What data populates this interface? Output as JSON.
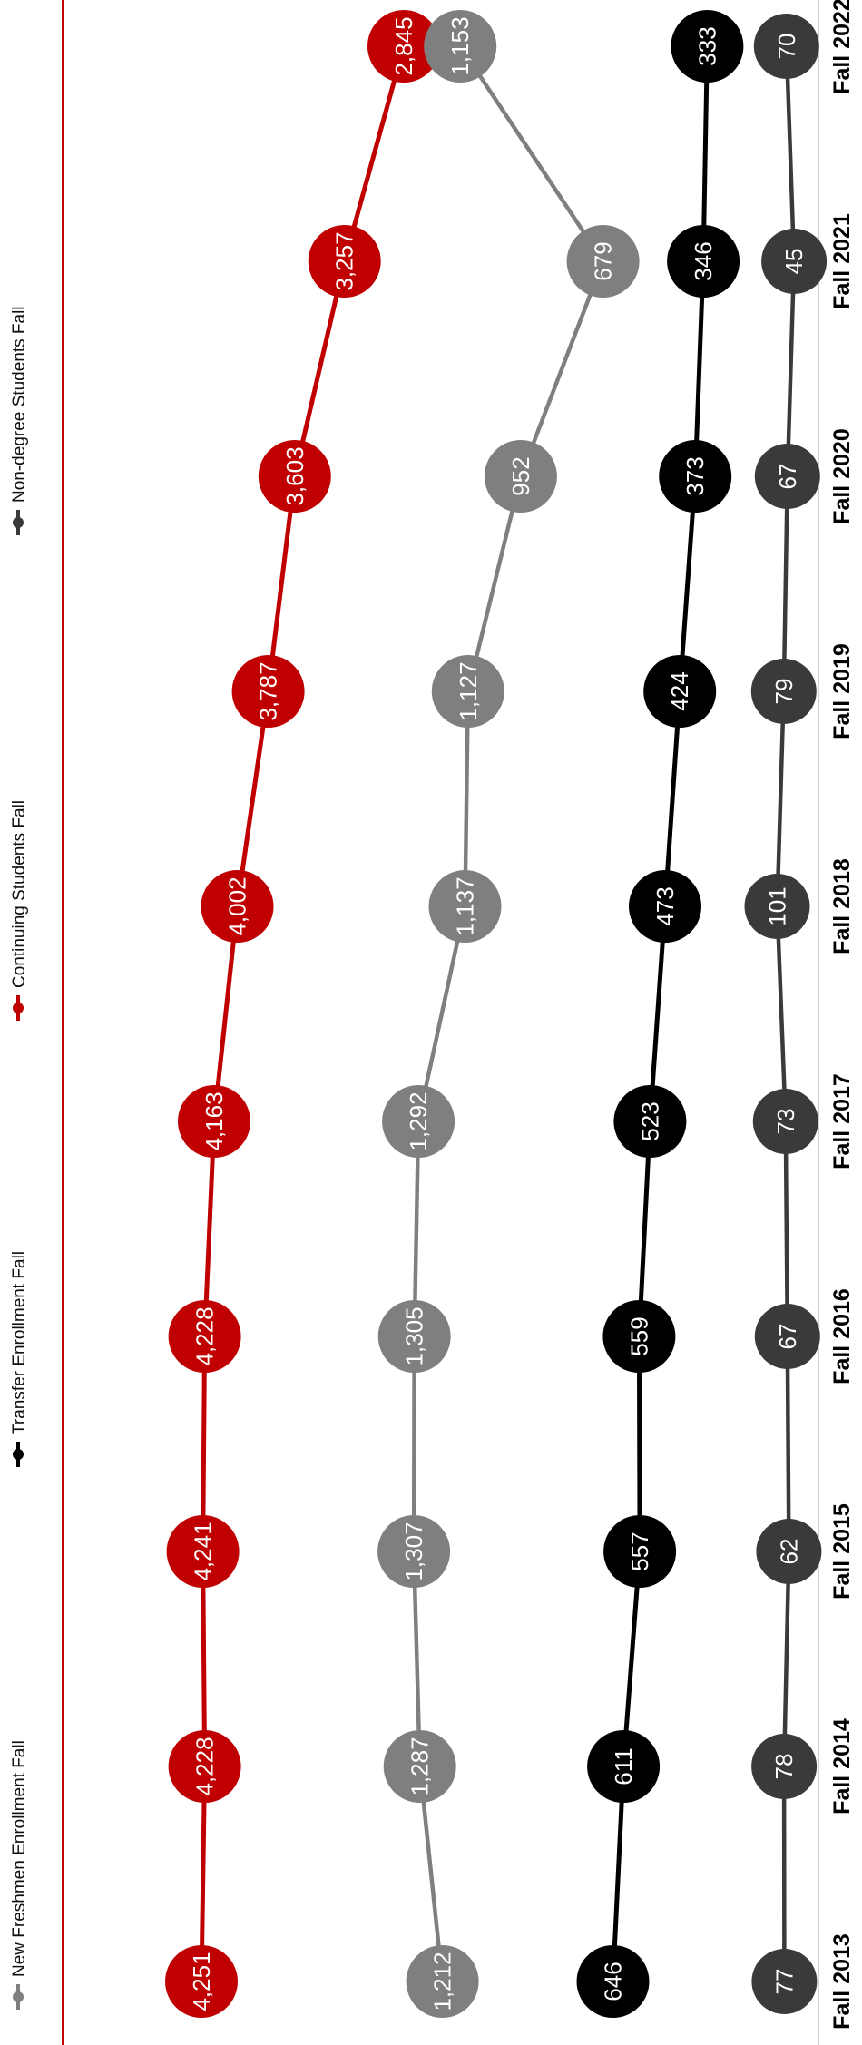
{
  "colors": {
    "freshmen": "#7f7f7f",
    "transfer": "#000000",
    "continuing": "#c00000",
    "nondegree": "#3a3a3a",
    "frame": "#c00000",
    "baseline": "#bfbfbf"
  },
  "legend": {
    "freshmen": "New Freshmen Enrollment Fall",
    "transfer": "Transfer Enrollment Fall",
    "continuing": "Continuing Students Fall",
    "nondegree": "Non-degree Students Fall"
  },
  "chart_data": {
    "type": "line",
    "orientation": "rotated-90",
    "categories": [
      "Fall 2013",
      "Fall 2014",
      "Fall 2015",
      "Fall 2016",
      "Fall 2017",
      "Fall 2018",
      "Fall 2019",
      "Fall 2020",
      "Fall 2021",
      "Fall 2022"
    ],
    "series": [
      {
        "name": "New Freshmen Enrollment Fall",
        "key": "freshmen",
        "values": [
          1212,
          1287,
          1307,
          1305,
          1292,
          1137,
          1127,
          952,
          679,
          1153
        ]
      },
      {
        "name": "Transfer Enrollment Fall",
        "key": "transfer",
        "values": [
          646,
          611,
          557,
          559,
          523,
          473,
          424,
          373,
          346,
          333
        ]
      },
      {
        "name": "Continuing Students Fall",
        "key": "continuing",
        "values": [
          4251,
          4228,
          4241,
          4228,
          4163,
          4002,
          3787,
          3603,
          3257,
          2845
        ]
      },
      {
        "name": "Non-degree Students Fall",
        "key": "nondegree",
        "values": [
          77,
          78,
          62,
          67,
          73,
          101,
          79,
          67,
          45,
          70
        ]
      }
    ],
    "labels": {
      "freshmen": [
        "1,212",
        "1,287",
        "1,307",
        "1,305",
        "1,292",
        "1,137",
        "1,127",
        "952",
        "679",
        "1,153"
      ],
      "transfer": [
        "646",
        "611",
        "557",
        "559",
        "523",
        "473",
        "424",
        "373",
        "346",
        "333"
      ],
      "continuing": [
        "4,251",
        "4,228",
        "4,241",
        "4,228",
        "4,163",
        "4,002",
        "3,787",
        "3,603",
        "3,257",
        "2,845"
      ],
      "nondegree": [
        "77",
        "78",
        "62",
        "67",
        "73",
        "101",
        "79",
        "67",
        "45",
        "70"
      ]
    },
    "grid": false,
    "legend_position": "left"
  }
}
